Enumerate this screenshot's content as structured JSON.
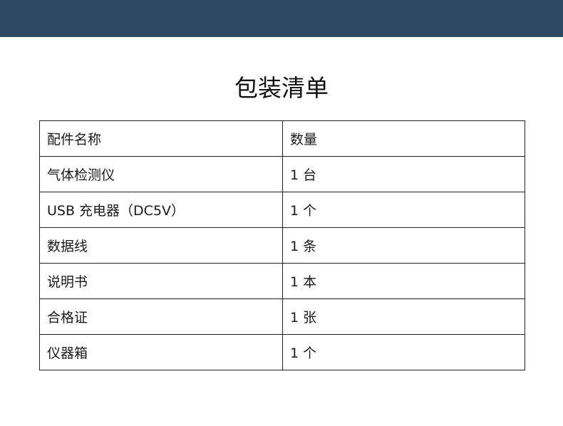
{
  "title": "包装清单",
  "table": {
    "headers": [
      "配件名称",
      "数量"
    ],
    "rows": [
      [
        "气体检测仪",
        "1 台"
      ],
      [
        "USB 充电器（DC5V）",
        "1 个"
      ],
      [
        "数据线",
        "1 条"
      ],
      [
        "说明书",
        "1 本"
      ],
      [
        "合格证",
        "1 张"
      ],
      [
        "仪器箱",
        "1 个"
      ]
    ]
  },
  "colors": {
    "header_bar": "#2e4963"
  }
}
